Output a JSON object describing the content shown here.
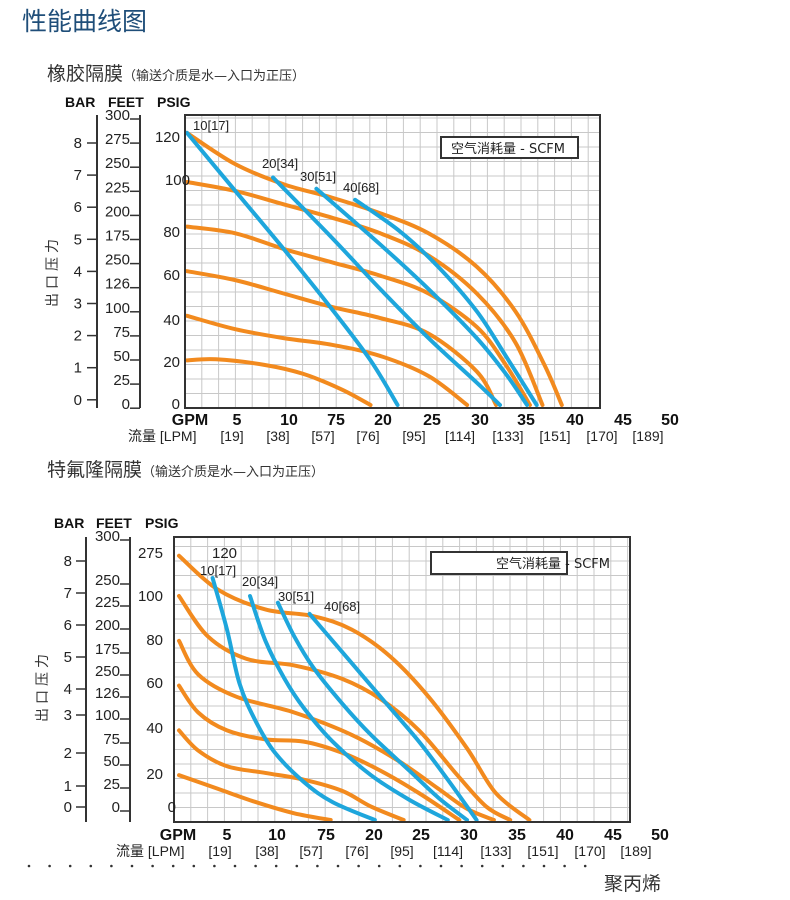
{
  "page_title": "性能曲线图",
  "colors": {
    "pressure_curve": "#f28a1e",
    "air_curve": "#1ea6dc",
    "title": "#1f4e79",
    "grid": "#c8c8c8"
  },
  "footer": {
    "material": "聚丙烯"
  },
  "charts": [
    {
      "heading": "橡胶隔膜",
      "heading_note": "（输送介质是水—入口为正压）",
      "legend": "空气消耗量 - SCFM",
      "y_axis_label": "出口压力",
      "unit_bar": "BAR",
      "unit_feet": "FEET",
      "unit_psig": "PSIG",
      "bar_ticks": [
        "8",
        "7",
        "6",
        "5",
        "4",
        "3",
        "2",
        "1",
        "0"
      ],
      "feet_ticks": [
        "300",
        "275",
        "250",
        "225",
        "200",
        "175",
        "250",
        "126",
        "100",
        "75",
        "50",
        "25",
        "0"
      ],
      "psig_ticks": [
        "120",
        "100",
        "80",
        "60",
        "40",
        "20",
        "0"
      ],
      "gpm_label": "GPM",
      "gpm_ticks": [
        "5",
        "10",
        "75",
        "20",
        "25",
        "30",
        "35",
        "40",
        "45",
        "50"
      ],
      "lpm_label": "流量 [LPM]",
      "lpm_ticks": [
        "[19]",
        "[38]",
        "[57]",
        "[76]",
        "[95]",
        "[114]",
        "[133]",
        "[151]",
        "[170]",
        "[189]"
      ]
    },
    {
      "heading": "特氟隆隔膜",
      "heading_note": "（输送介质是水—入口为正压）",
      "legend": "空气消耗量 - SCFM",
      "y_axis_label": "出口压力",
      "unit_bar": "BAR",
      "unit_feet": "FEET",
      "unit_psig": "PSIG",
      "bar_ticks": [
        "8",
        "7",
        "6",
        "5",
        "4",
        "3",
        "2",
        "1",
        "0"
      ],
      "feet_ticks": [
        "300",
        "250",
        "225",
        "200",
        "175",
        "250",
        "126",
        "100",
        "75",
        "50",
        "25",
        "0"
      ],
      "psig_ticks": [
        "275",
        "120",
        "100",
        "80",
        "60",
        "40",
        "20",
        "0"
      ],
      "gpm_label": "GPM",
      "gpm_ticks": [
        "5",
        "10",
        "75",
        "20",
        "25",
        "30",
        "35",
        "40",
        "45",
        "50"
      ],
      "lpm_label": "流量 [LPM]",
      "lpm_ticks": [
        "[19]",
        "[38]",
        "[57]",
        "[76]",
        "[95]",
        "[114]",
        "[133]",
        "[151]",
        "[170]",
        "[189]"
      ]
    }
  ],
  "chart_data": [
    {
      "type": "line",
      "title": "橡胶隔膜",
      "xlabel": "GPM",
      "ylabel": "PSIG",
      "xlim": [
        0,
        43
      ],
      "ylim": [
        0,
        130
      ],
      "grid": true,
      "legend_placement": "top-right",
      "pressure_curves": [
        [
          [
            0,
            122
          ],
          [
            5,
            108
          ],
          [
            10,
            99
          ],
          [
            15,
            93
          ],
          [
            20,
            86
          ],
          [
            25,
            77
          ],
          [
            30,
            62
          ],
          [
            34,
            42
          ],
          [
            37,
            18
          ],
          [
            38.8,
            0
          ]
        ],
        [
          [
            0,
            100
          ],
          [
            5,
            96
          ],
          [
            10,
            90
          ],
          [
            15,
            84
          ],
          [
            20,
            77
          ],
          [
            25,
            67
          ],
          [
            30,
            50
          ],
          [
            34,
            28
          ],
          [
            36.8,
            0
          ]
        ],
        [
          [
            0,
            80
          ],
          [
            5,
            77
          ],
          [
            10,
            70
          ],
          [
            15,
            64
          ],
          [
            20,
            58
          ],
          [
            25,
            50
          ],
          [
            30,
            35
          ],
          [
            33,
            18
          ],
          [
            35.5,
            0
          ]
        ],
        [
          [
            0,
            60
          ],
          [
            5,
            56
          ],
          [
            10,
            50
          ],
          [
            15,
            44
          ],
          [
            20,
            39
          ],
          [
            25,
            32
          ],
          [
            30,
            15
          ],
          [
            32,
            0
          ]
        ],
        [
          [
            0,
            40
          ],
          [
            5,
            34
          ],
          [
            10,
            30
          ],
          [
            15,
            27
          ],
          [
            20,
            22
          ],
          [
            25,
            13
          ],
          [
            29,
            0
          ]
        ],
        [
          [
            0,
            20
          ],
          [
            3,
            20.5
          ],
          [
            8,
            18
          ],
          [
            12,
            14
          ],
          [
            16,
            7
          ],
          [
            19,
            0
          ]
        ]
      ],
      "air_series": [
        {
          "name": "10[17]",
          "points": [
            [
              0,
              122
            ],
            [
              5,
              96
            ],
            [
              10,
              70
            ],
            [
              15,
              43
            ],
            [
              19,
              20
            ],
            [
              21.8,
              0
            ]
          ]
        },
        {
          "name": "20[34]",
          "points": [
            [
              8.9,
              102
            ],
            [
              15,
              75
            ],
            [
              20,
              52
            ],
            [
              25,
              30
            ],
            [
              30,
              10
            ],
            [
              32.4,
              0
            ]
          ]
        },
        {
          "name": "30[51]",
          "points": [
            [
              13.4,
              97
            ],
            [
              20,
              72
            ],
            [
              25,
              52
            ],
            [
              30,
              30
            ],
            [
              33,
              14
            ],
            [
              35.2,
              0
            ]
          ]
        },
        {
          "name": "40[68]",
          "points": [
            [
              17.4,
              92
            ],
            [
              22,
              78
            ],
            [
              26,
              62
            ],
            [
              30,
              42
            ],
            [
              33,
              22
            ],
            [
              36.2,
              0
            ]
          ]
        }
      ]
    },
    {
      "type": "line",
      "title": "特氟隆隔膜",
      "xlabel": "GPM",
      "ylabel": "PSIG",
      "xlim": [
        0,
        47
      ],
      "ylim": [
        0,
        127
      ],
      "grid": true,
      "legend_placement": "top-right",
      "pressure_curves": [
        [
          [
            0,
            118
          ],
          [
            4,
            103
          ],
          [
            9,
            94
          ],
          [
            14,
            91
          ],
          [
            18,
            85
          ],
          [
            22,
            73
          ],
          [
            26,
            55
          ],
          [
            30,
            32
          ],
          [
            33,
            12
          ],
          [
            36.5,
            0
          ]
        ],
        [
          [
            0,
            100
          ],
          [
            3,
            82
          ],
          [
            7,
            72
          ],
          [
            12,
            69
          ],
          [
            17,
            63
          ],
          [
            21,
            54
          ],
          [
            25,
            40
          ],
          [
            29,
            20
          ],
          [
            32,
            6
          ],
          [
            34.5,
            0
          ]
        ],
        [
          [
            0,
            80
          ],
          [
            2,
            65
          ],
          [
            6,
            55
          ],
          [
            12,
            48
          ],
          [
            18,
            38
          ],
          [
            23,
            26
          ],
          [
            27,
            14
          ],
          [
            30,
            5
          ],
          [
            32.8,
            0
          ]
        ],
        [
          [
            0,
            60
          ],
          [
            2,
            48
          ],
          [
            5,
            40
          ],
          [
            9,
            36
          ],
          [
            13,
            35
          ],
          [
            17,
            30
          ],
          [
            21,
            22
          ],
          [
            25,
            12
          ],
          [
            29.2,
            0
          ]
        ],
        [
          [
            0,
            40
          ],
          [
            2,
            31
          ],
          [
            5,
            24
          ],
          [
            9,
            21
          ],
          [
            13,
            18
          ],
          [
            17,
            13
          ],
          [
            20,
            6
          ],
          [
            23.4,
            0
          ]
        ],
        [
          [
            0,
            20
          ],
          [
            4,
            14
          ],
          [
            8,
            8
          ],
          [
            12,
            3
          ],
          [
            15.8,
            0
          ]
        ]
      ],
      "air_series": [
        {
          "name": "10[17]",
          "points": [
            [
              3.5,
              108
            ],
            [
              5,
              85
            ],
            [
              6.3,
              61
            ],
            [
              8,
              44
            ],
            [
              10,
              30
            ],
            [
              13,
              17
            ],
            [
              16,
              8
            ],
            [
              20.4,
              0
            ]
          ]
        },
        {
          "name": "20[34]",
          "points": [
            [
              7.4,
              100
            ],
            [
              9,
              80
            ],
            [
              11,
              63
            ],
            [
              13,
              50
            ],
            [
              16,
              35
            ],
            [
              20,
              20
            ],
            [
              24,
              9
            ],
            [
              28,
              0
            ]
          ]
        },
        {
          "name": "30[51]",
          "points": [
            [
              10.3,
              97
            ],
            [
              12,
              82
            ],
            [
              14,
              68
            ],
            [
              17,
              52
            ],
            [
              20,
              38
            ],
            [
              24,
              22
            ],
            [
              27,
              10
            ],
            [
              30,
              0
            ]
          ]
        },
        {
          "name": "40[68]",
          "points": [
            [
              13.6,
              92
            ],
            [
              16,
              80
            ],
            [
              19,
              65
            ],
            [
              22,
              50
            ],
            [
              25,
              35
            ],
            [
              28,
              18
            ],
            [
              31,
              0
            ]
          ]
        }
      ]
    }
  ]
}
